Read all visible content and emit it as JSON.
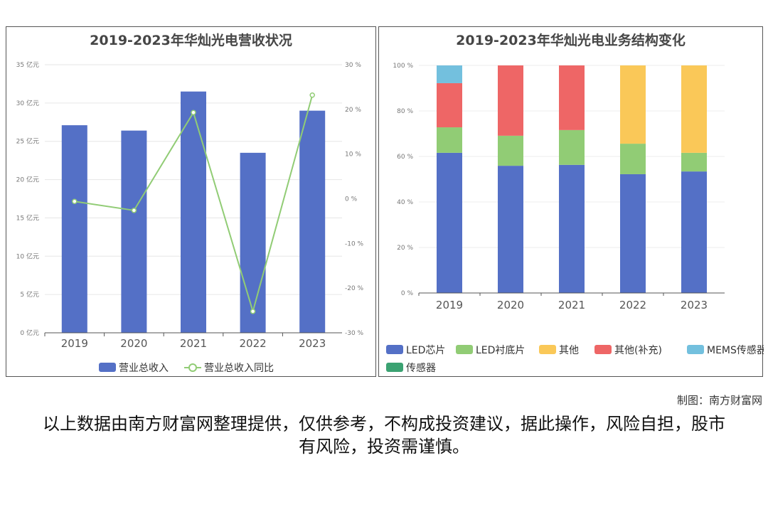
{
  "chart_data": [
    {
      "type": "bar+line",
      "title": "2019-2023年华灿光电营收状况",
      "categories": [
        "2019",
        "2020",
        "2021",
        "2022",
        "2023"
      ],
      "series": [
        {
          "name": "营业总收入",
          "type": "bar",
          "axis": "left",
          "values": [
            27.1,
            26.4,
            31.5,
            23.5,
            29.0
          ],
          "color": "#5470c6"
        },
        {
          "name": "营业总收入同比",
          "type": "line",
          "axis": "right",
          "values": [
            -0.6,
            -2.6,
            19.3,
            -25.2,
            23.2
          ],
          "color": "#91cc75"
        }
      ],
      "ylim_left": [
        0,
        35
      ],
      "yticks_left": [
        "0 亿元",
        "5 亿元",
        "10 亿元",
        "15 亿元",
        "20 亿元",
        "25 亿元",
        "30 亿元",
        "35 亿元"
      ],
      "ylim_right": [
        -30,
        30
      ],
      "yticks_right": [
        "-30 %",
        "-20 %",
        "-10 %",
        "0 %",
        "10 %",
        "20 %",
        "30 %"
      ],
      "legend": "bottom"
    },
    {
      "type": "stacked-bar",
      "title": "2019-2023年华灿光电业务结构变化",
      "categories": [
        "2019",
        "2020",
        "2021",
        "2022",
        "2023"
      ],
      "series": [
        {
          "name": "LED芯片",
          "values": [
            61.6,
            55.9,
            56.3,
            52.2,
            53.4
          ],
          "color": "#5470c6"
        },
        {
          "name": "LED衬底片",
          "values": [
            11.2,
            13.2,
            15.3,
            13.4,
            8.2
          ],
          "color": "#91cc75"
        },
        {
          "name": "其他",
          "values": [
            0,
            0,
            0,
            34.4,
            38.4
          ],
          "color": "#fac858"
        },
        {
          "name": "其他(补充)",
          "values": [
            19.4,
            30.9,
            28.4,
            0,
            0
          ],
          "color": "#ee6666"
        },
        {
          "name": "MEMS传感器",
          "values": [
            7.8,
            0,
            0,
            0,
            0
          ],
          "color": "#73c0de"
        },
        {
          "name": "传感器",
          "values": [
            0,
            0,
            0,
            0,
            0
          ],
          "color": "#3ba272"
        }
      ],
      "ylim": [
        0,
        100
      ],
      "yticks": [
        "0 %",
        "20 %",
        "40 %",
        "60 %",
        "80 %",
        "100 %"
      ],
      "legend": "bottom"
    }
  ],
  "credit": "制图：南方财富网",
  "disclaimer": "以上数据由南方财富网整理提供，仅供参考，不构成投资建议，据此操作，风险自担，股市有风险，投资需谨慎。"
}
